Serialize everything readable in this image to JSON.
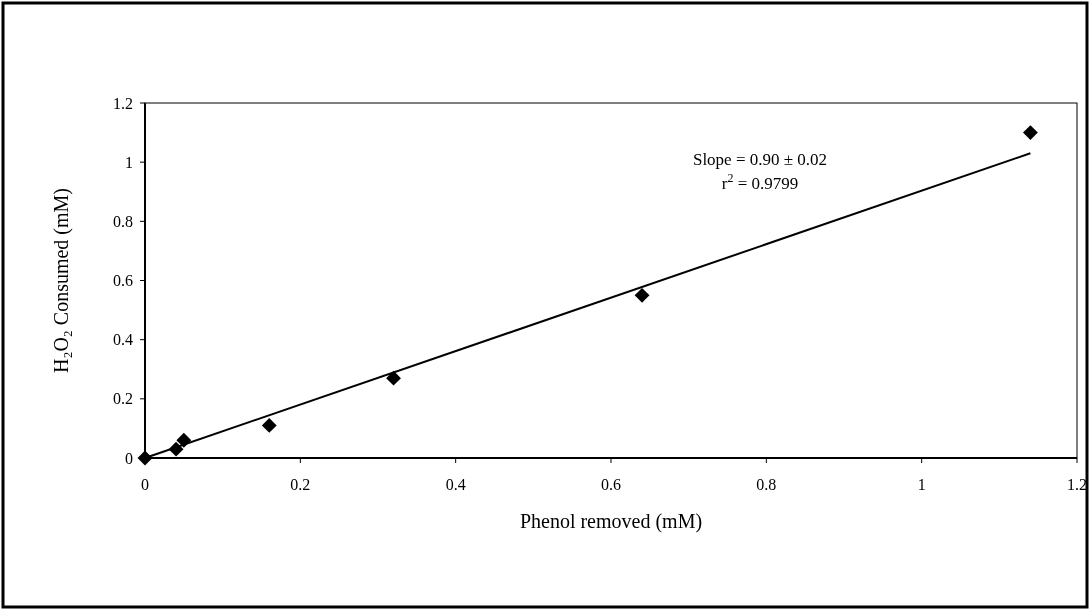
{
  "chart_data": {
    "type": "scatter",
    "xlabel": "Phenol removed (mM)",
    "ylabel": "H₂O₂ Consumed (mM)",
    "xlim": [
      0,
      1.2
    ],
    "xticks": [
      0,
      0.2,
      0.4,
      0.6,
      0.8,
      1,
      1.2
    ],
    "ylim": [
      0,
      1.2
    ],
    "yticks": [
      0,
      0.2,
      0.4,
      0.6,
      0.8,
      1,
      1.2
    ],
    "grid": false,
    "marker": "diamond",
    "series": [
      {
        "color": "#000000",
        "x": [
          0,
          0.04,
          0.05,
          0.16,
          0.32,
          0.64,
          1.14
        ],
        "values": [
          0,
          0.03,
          0.06,
          0.11,
          0.27,
          0.55,
          1.1
        ]
      },
      {
        "type": "line",
        "color": "#000000",
        "x": [
          0,
          1.14
        ],
        "values": [
          0,
          1.03
        ],
        "marker": "none",
        "line_style": "solid"
      }
    ],
    "annotations": [
      "Slope = 0.90 ± 0.02",
      "r$^{2}$ = 0.9799"
    ]
  }
}
